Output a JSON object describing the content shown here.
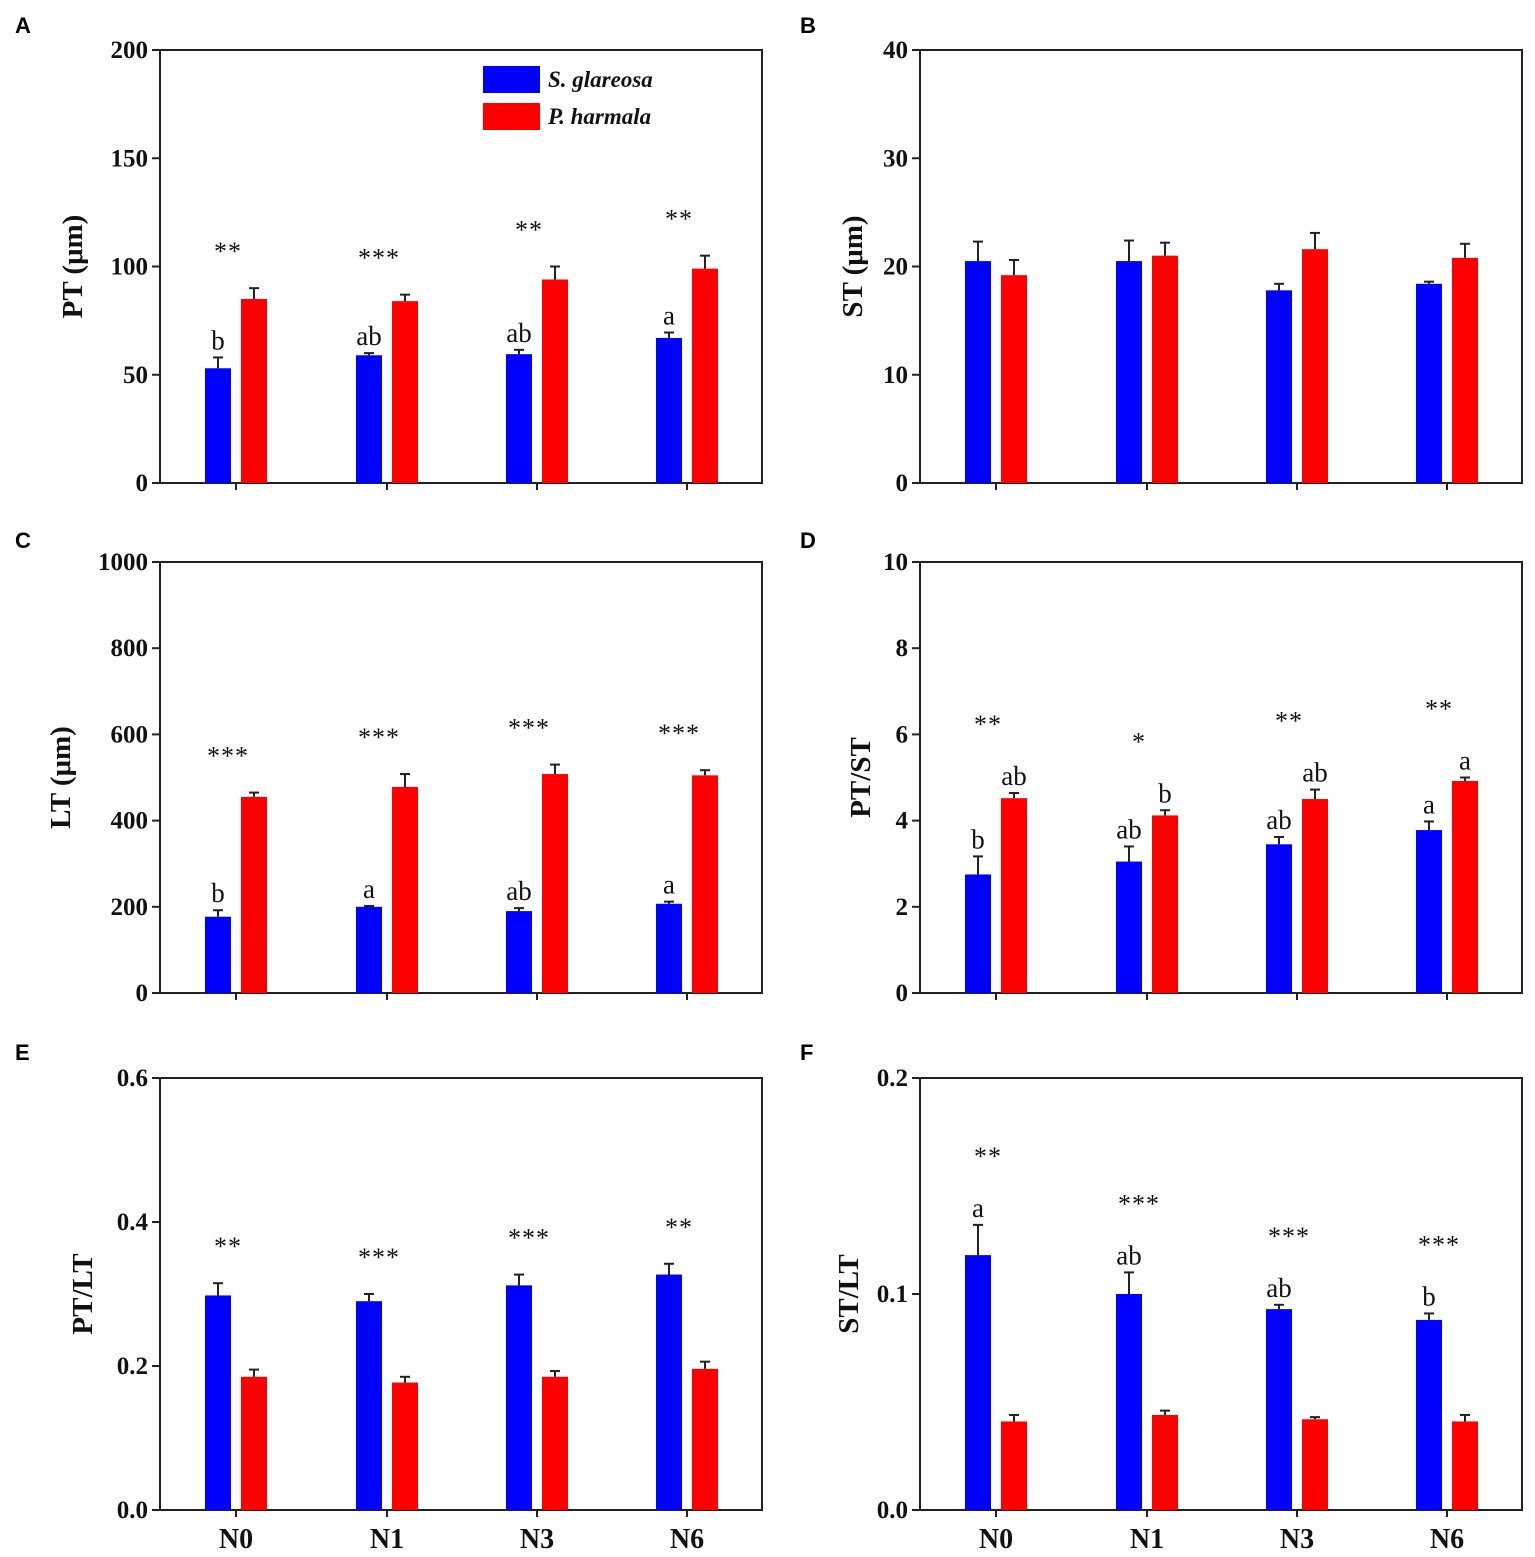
{
  "colors": {
    "series1": "#0000ff",
    "series2": "#ff0000",
    "axis": "#222222"
  },
  "legend": {
    "series1": "S. glareosa",
    "series2": "P. harmala"
  },
  "chart_data": [
    {
      "panel": "A",
      "type": "bar",
      "ylabel": "PT (μm)",
      "ylim": [
        0,
        200
      ],
      "yticks": [
        0,
        50,
        100,
        150,
        200
      ],
      "categories": [
        "N0",
        "N1",
        "N3",
        "N6"
      ],
      "show_xticks": false,
      "show_legend": true,
      "series": [
        {
          "name": "S. glareosa",
          "values": [
            53,
            59,
            59.5,
            67
          ],
          "errors": [
            5,
            1,
            2,
            2.5
          ],
          "letters": [
            "b",
            "ab",
            "ab",
            "a"
          ]
        },
        {
          "name": "P. harmala",
          "values": [
            85,
            84,
            94,
            99
          ],
          "errors": [
            5,
            3,
            6,
            6
          ],
          "letters": [
            "",
            "",
            "",
            ""
          ]
        }
      ],
      "significance": [
        "**",
        "***",
        "**",
        "**"
      ]
    },
    {
      "panel": "B",
      "type": "bar",
      "ylabel": "ST (μm)",
      "ylim": [
        0,
        40
      ],
      "yticks": [
        0,
        10,
        20,
        30,
        40
      ],
      "categories": [
        "N0",
        "N1",
        "N3",
        "N6"
      ],
      "show_xticks": false,
      "show_legend": false,
      "series": [
        {
          "name": "S. glareosa",
          "values": [
            20.5,
            20.5,
            17.8,
            18.4
          ],
          "errors": [
            1.8,
            1.9,
            0.6,
            0.2
          ],
          "letters": [
            "",
            "",
            "",
            ""
          ]
        },
        {
          "name": "P. harmala",
          "values": [
            19.2,
            21.0,
            21.6,
            20.8
          ],
          "errors": [
            1.4,
            1.2,
            1.5,
            1.3
          ],
          "letters": [
            "",
            "",
            "",
            ""
          ]
        }
      ],
      "significance": [
        "",
        "",
        "",
        ""
      ]
    },
    {
      "panel": "C",
      "type": "bar",
      "ylabel": "LT (μm)",
      "ylim": [
        0,
        1000
      ],
      "yticks": [
        0,
        200,
        400,
        600,
        800,
        1000
      ],
      "categories": [
        "N0",
        "N1",
        "N3",
        "N6"
      ],
      "show_xticks": false,
      "show_legend": false,
      "series": [
        {
          "name": "S. glareosa",
          "values": [
            177,
            200,
            190,
            207
          ],
          "errors": [
            15,
            2,
            7,
            5
          ],
          "letters": [
            "b",
            "a",
            "ab",
            "a"
          ]
        },
        {
          "name": "P. harmala",
          "values": [
            455,
            478,
            508,
            505
          ],
          "errors": [
            10,
            30,
            22,
            12
          ],
          "letters": [
            "",
            "",
            "",
            ""
          ]
        }
      ],
      "significance": [
        "***",
        "***",
        "***",
        "***"
      ]
    },
    {
      "panel": "D",
      "type": "bar",
      "ylabel": "PT/ST",
      "ylim": [
        0,
        10
      ],
      "yticks": [
        0,
        2,
        4,
        6,
        8,
        10
      ],
      "categories": [
        "N0",
        "N1",
        "N3",
        "N6"
      ],
      "show_xticks": false,
      "show_legend": false,
      "series": [
        {
          "name": "S. glareosa",
          "values": [
            2.75,
            3.05,
            3.45,
            3.78
          ],
          "errors": [
            0.42,
            0.35,
            0.17,
            0.2
          ],
          "letters": [
            "b",
            "ab",
            "ab",
            "a"
          ]
        },
        {
          "name": "P. harmala",
          "values": [
            4.52,
            4.12,
            4.5,
            4.92
          ],
          "errors": [
            0.12,
            0.12,
            0.22,
            0.08
          ],
          "letters": [
            "ab",
            "b",
            "ab",
            "a"
          ]
        }
      ],
      "significance": [
        "**",
        "*",
        "**",
        "**"
      ]
    },
    {
      "panel": "E",
      "type": "bar",
      "ylabel": "PT/LT",
      "ylim": [
        0,
        0.6
      ],
      "yticks": [
        "0.0",
        "0.2",
        "0.4",
        "0.6"
      ],
      "categories": [
        "N0",
        "N1",
        "N3",
        "N6"
      ],
      "show_xticks": true,
      "show_legend": false,
      "series": [
        {
          "name": "S. glareosa",
          "values": [
            0.298,
            0.29,
            0.312,
            0.327
          ],
          "errors": [
            0.017,
            0.01,
            0.015,
            0.015
          ],
          "letters": [
            "",
            "",
            "",
            ""
          ]
        },
        {
          "name": "P. harmala",
          "values": [
            0.185,
            0.177,
            0.185,
            0.196
          ],
          "errors": [
            0.01,
            0.008,
            0.008,
            0.01
          ],
          "letters": [
            "",
            "",
            "",
            ""
          ]
        }
      ],
      "significance": [
        "**",
        "***",
        "***",
        "**"
      ]
    },
    {
      "panel": "F",
      "type": "bar",
      "ylabel": "ST/LT",
      "ylim": [
        0,
        0.2
      ],
      "yticks": [
        "0.0",
        "0.1",
        "0.2"
      ],
      "categories": [
        "N0",
        "N1",
        "N3",
        "N6"
      ],
      "show_xticks": true,
      "show_legend": false,
      "series": [
        {
          "name": "S. glareosa",
          "values": [
            0.118,
            0.1,
            0.093,
            0.088
          ],
          "errors": [
            0.014,
            0.01,
            0.002,
            0.003
          ],
          "letters": [
            "a",
            "ab",
            "ab",
            "b"
          ]
        },
        {
          "name": "P. harmala",
          "values": [
            0.041,
            0.044,
            0.042,
            0.041
          ],
          "errors": [
            0.003,
            0.002,
            0.001,
            0.003
          ],
          "letters": [
            "",
            "",
            "",
            ""
          ]
        }
      ],
      "significance": [
        "**",
        "***",
        "***",
        "***"
      ]
    }
  ]
}
